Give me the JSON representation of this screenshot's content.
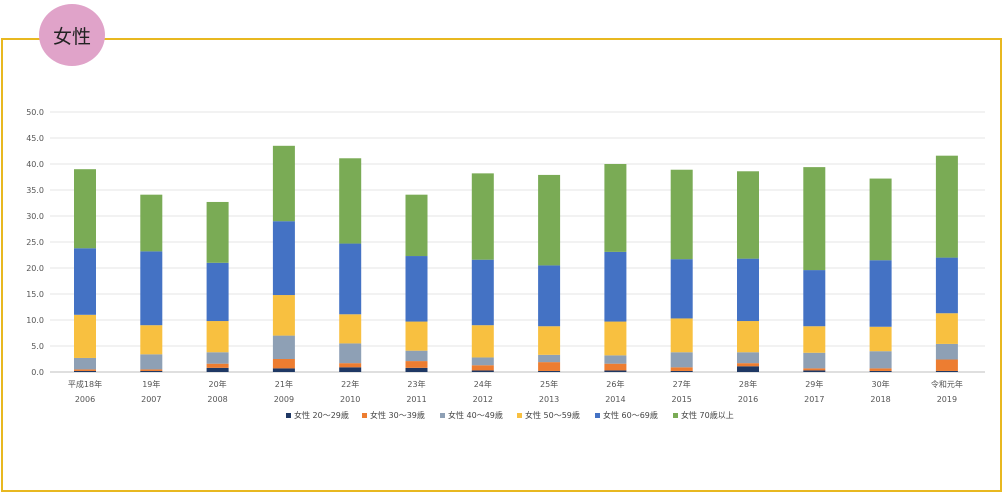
{
  "badge": {
    "label": "女性",
    "color": "#e0a3c9"
  },
  "frame_color": "#e8b820",
  "chart_data": {
    "type": "bar",
    "stacked": true,
    "ylim": [
      0,
      50
    ],
    "yticks": [
      "0.0",
      "5.0",
      "10.0",
      "15.0",
      "20.0",
      "25.0",
      "30.0",
      "35.0",
      "40.0",
      "45.0",
      "50.0"
    ],
    "grid": true,
    "legend": "bottom",
    "categories": [
      {
        "top": "平成18年",
        "bottom": "2006"
      },
      {
        "top": "19年",
        "bottom": "2007"
      },
      {
        "top": "20年",
        "bottom": "2008"
      },
      {
        "top": "21年",
        "bottom": "2009"
      },
      {
        "top": "22年",
        "bottom": "2010"
      },
      {
        "top": "23年",
        "bottom": "2011"
      },
      {
        "top": "24年",
        "bottom": "2012"
      },
      {
        "top": "25年",
        "bottom": "2013"
      },
      {
        "top": "26年",
        "bottom": "2014"
      },
      {
        "top": "27年",
        "bottom": "2015"
      },
      {
        "top": "28年",
        "bottom": "2016"
      },
      {
        "top": "29年",
        "bottom": "2017"
      },
      {
        "top": "30年",
        "bottom": "2018"
      },
      {
        "top": "令和元年",
        "bottom": "2019"
      }
    ],
    "series": [
      {
        "name": "女性 20～29歳",
        "color": "#1f3864",
        "values": [
          0.2,
          0.2,
          0.8,
          0.7,
          0.9,
          0.8,
          0.3,
          0.2,
          0.3,
          0.2,
          1.1,
          0.3,
          0.2,
          0.2
        ]
      },
      {
        "name": "女性 30～39歳",
        "color": "#ed7d31",
        "values": [
          0.3,
          0.3,
          0.8,
          1.8,
          0.8,
          1.3,
          1.0,
          1.7,
          1.3,
          0.7,
          0.6,
          0.4,
          0.5,
          2.2
        ]
      },
      {
        "name": "女性 40～49歳",
        "color": "#8ea0b5",
        "values": [
          2.2,
          2.9,
          2.2,
          4.5,
          3.8,
          2.0,
          1.5,
          1.4,
          1.6,
          2.9,
          2.1,
          3.0,
          3.3,
          3.0
        ]
      },
      {
        "name": "女性 50～59歳",
        "color": "#f8c040",
        "values": [
          8.3,
          5.6,
          6.0,
          7.8,
          5.6,
          5.6,
          6.2,
          5.5,
          6.5,
          6.5,
          6.0,
          5.1,
          4.7,
          5.9
        ]
      },
      {
        "name": "女性 60～69歳",
        "color": "#4472c4",
        "values": [
          12.8,
          14.2,
          11.2,
          14.2,
          13.6,
          12.6,
          12.6,
          11.7,
          13.4,
          11.4,
          12.0,
          10.8,
          12.8,
          10.7
        ]
      },
      {
        "name": "女性 70歳以上",
        "color": "#7aab55",
        "values": [
          15.2,
          10.9,
          11.7,
          14.5,
          16.4,
          11.8,
          16.6,
          17.4,
          16.9,
          17.2,
          16.8,
          19.8,
          15.7,
          19.6
        ]
      }
    ]
  }
}
